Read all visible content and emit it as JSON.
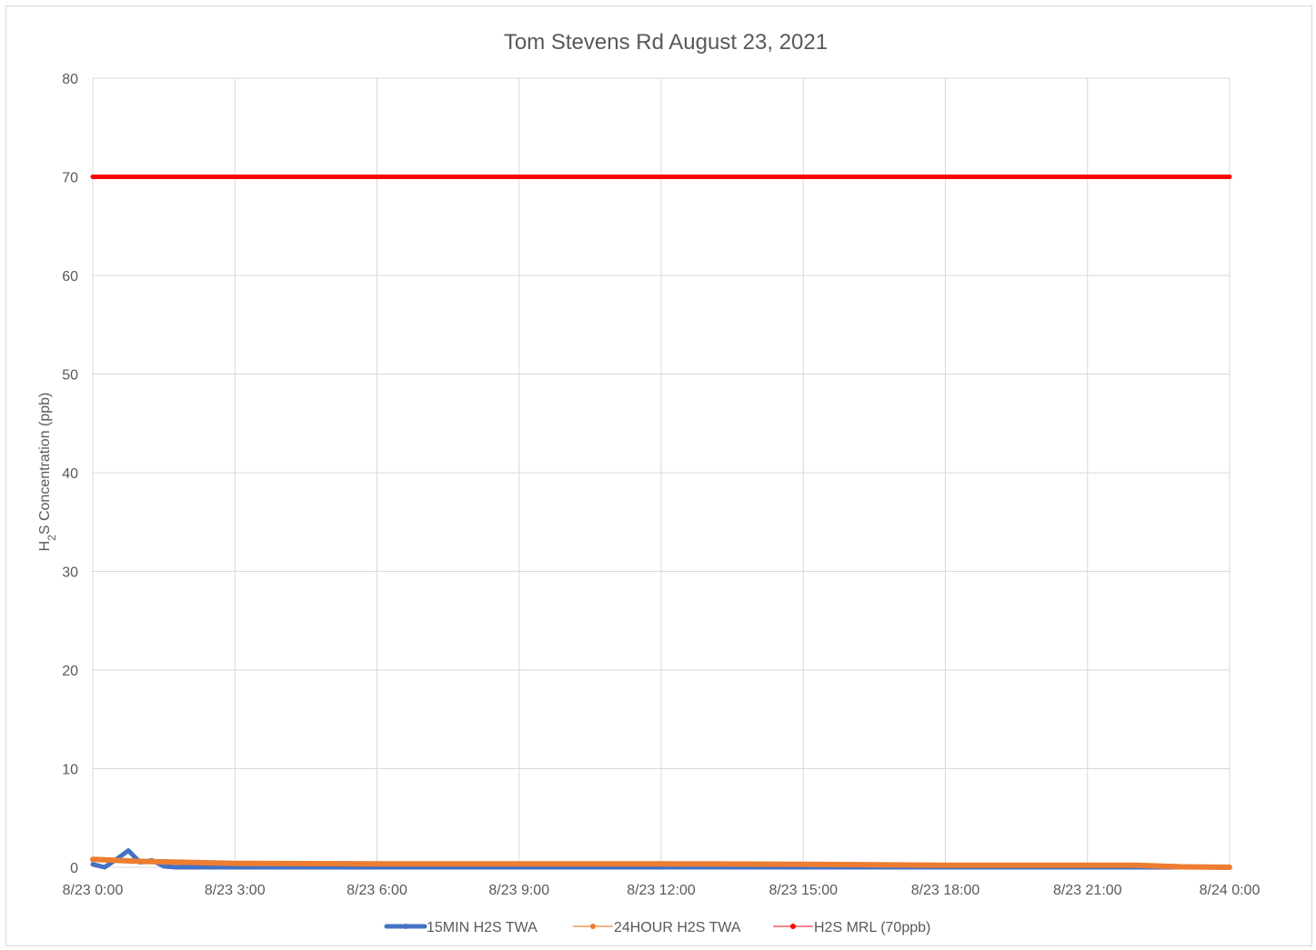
{
  "chart_data": {
    "type": "line",
    "title": "Tom Stevens Rd August 23, 2021",
    "ylabel_parts": {
      "pre": "H",
      "sub": "2",
      "post": "S Concentration (ppb)"
    },
    "xlabel": "",
    "ylim": [
      0,
      80
    ],
    "yticks": [
      0,
      10,
      20,
      30,
      40,
      50,
      60,
      70,
      80
    ],
    "xlim": [
      "8/23 0:00",
      "8/24 0:00"
    ],
    "xtick_labels": [
      "8/23 0:00",
      "8/23 3:00",
      "8/23 6:00",
      "8/23 9:00",
      "8/23 12:00",
      "8/23 15:00",
      "8/23 18:00",
      "8/23 21:00",
      "8/24 0:00"
    ],
    "grid": true,
    "legend_position": "bottom",
    "series": [
      {
        "name": "15MIN H2S TWA",
        "color": "#4472c4",
        "x": [
          "8/23 0:00",
          "8/23 0:15",
          "8/23 0:30",
          "8/23 0:45",
          "8/23 1:00",
          "8/23 1:15",
          "8/23 1:30",
          "8/23 1:45",
          "8/23 2:00",
          "8/23 3:00",
          "8/23 6:00",
          "8/23 9:00",
          "8/23 12:00",
          "8/23 15:00",
          "8/23 18:00",
          "8/23 21:00",
          "8/23 22:00",
          "8/23 23:00",
          "8/24 0:00"
        ],
        "y": [
          0.3,
          0.0,
          0.8,
          1.7,
          0.5,
          0.7,
          0.1,
          0.0,
          0.0,
          0.0,
          0.0,
          0.0,
          0.0,
          0.0,
          0.0,
          0.0,
          0.0,
          0.0,
          0.0
        ]
      },
      {
        "name": "24HOUR H2S TWA",
        "color": "#ed7d31",
        "x": [
          "8/23 0:00",
          "8/23 1:00",
          "8/23 3:00",
          "8/23 6:00",
          "8/23 9:00",
          "8/23 12:00",
          "8/23 15:00",
          "8/23 18:00",
          "8/23 21:00",
          "8/23 22:00",
          "8/23 23:00",
          "8/24 0:00"
        ],
        "y": [
          0.8,
          0.6,
          0.4,
          0.35,
          0.35,
          0.35,
          0.3,
          0.2,
          0.2,
          0.2,
          0.05,
          0.0
        ]
      },
      {
        "name": "H2S MRL (70ppb)",
        "color": "#ff0000",
        "x": [
          "8/23 0:00",
          "8/24 0:00"
        ],
        "y": [
          70,
          70
        ]
      }
    ]
  }
}
